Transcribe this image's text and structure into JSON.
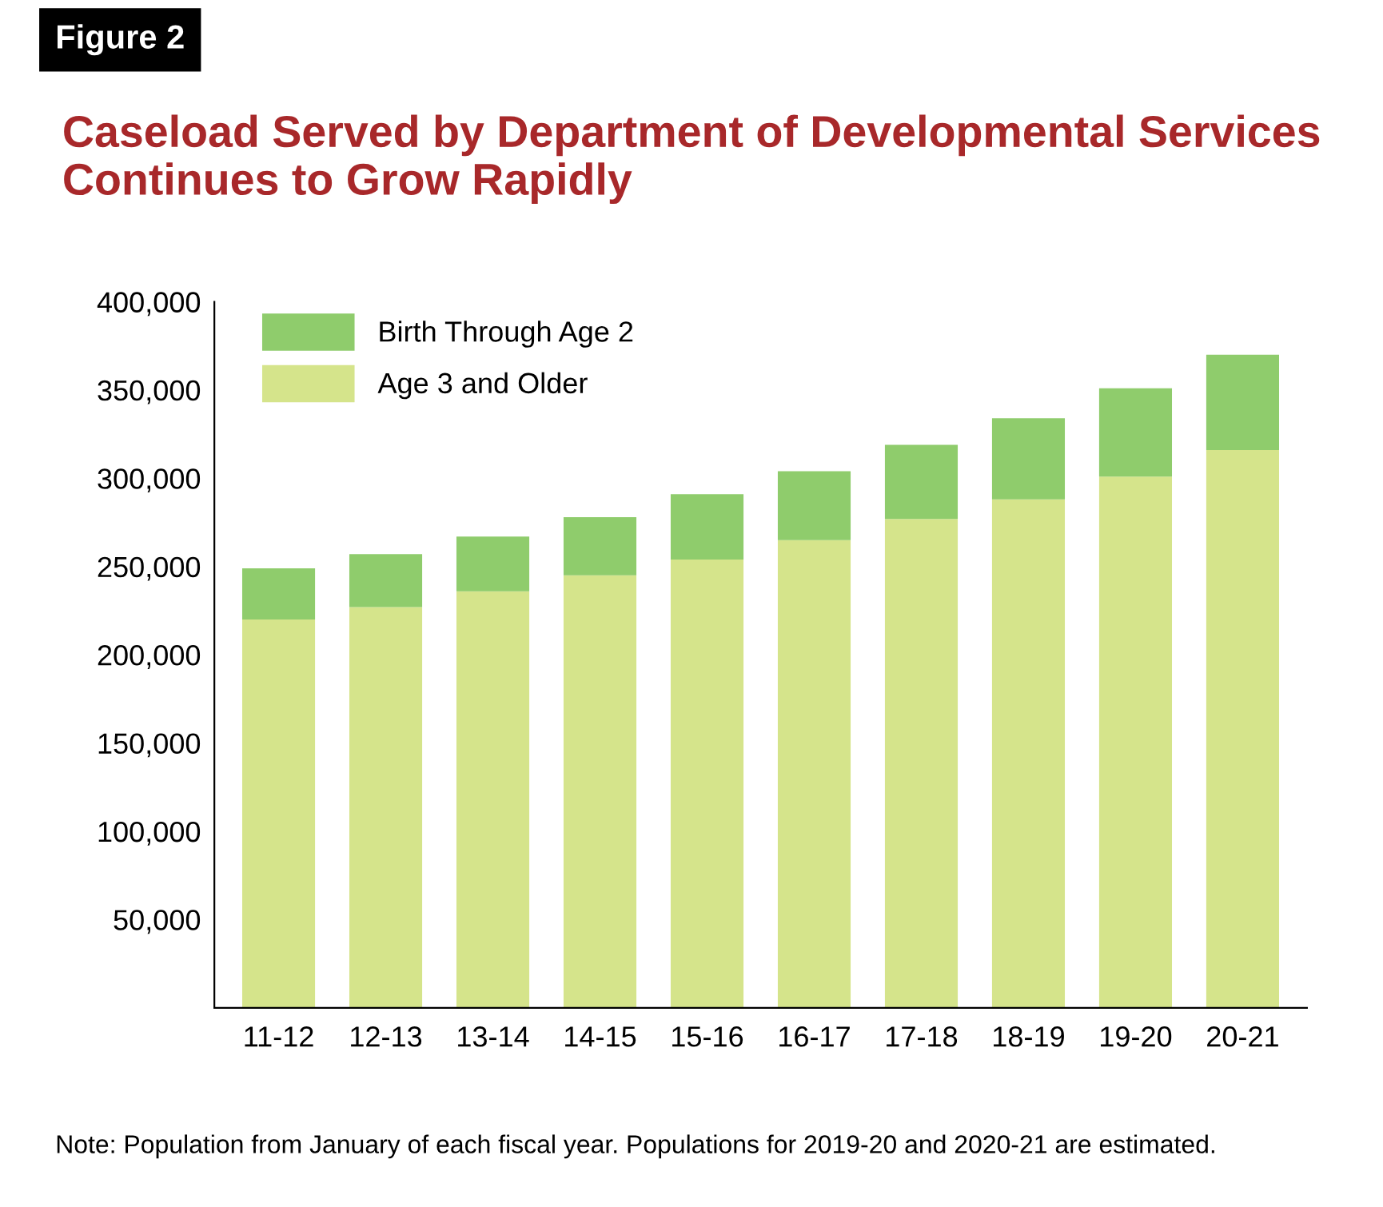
{
  "chart_data": {
    "type": "bar",
    "stacked": true,
    "title": "Caseload Served by Department of Developmental Services Continues to Grow Rapidly",
    "annotations": [
      "Figure 2",
      "Note: Population from January of each fiscal year. Populations for 2019-20 and 2020-21 are estimated."
    ],
    "categories": [
      "11-12",
      "12-13",
      "13-14",
      "14-15",
      "15-16",
      "16-17",
      "17-18",
      "18-19",
      "19-20",
      "20-21"
    ],
    "series": [
      {
        "name": "Age 3 and Older",
        "color": "#d5e48b",
        "values": [
          220000,
          227000,
          236000,
          245000,
          254000,
          265000,
          277000,
          288000,
          301000,
          316000
        ]
      },
      {
        "name": "Birth Through Age 2",
        "color": "#8fcc6c",
        "values": [
          29000,
          30000,
          31000,
          33000,
          37000,
          39000,
          42000,
          46000,
          50000,
          54000
        ]
      }
    ],
    "ylim": [
      0,
      400000
    ],
    "yticks": [
      {
        "value": 50000,
        "label": "50,000"
      },
      {
        "value": 100000,
        "label": "100,000"
      },
      {
        "value": 150000,
        "label": "150,000"
      },
      {
        "value": 200000,
        "label": "200,000"
      },
      {
        "value": 250000,
        "label": "250,000"
      },
      {
        "value": 300000,
        "label": "300,000"
      },
      {
        "value": 350000,
        "label": "350,000"
      },
      {
        "value": 400000,
        "label": "400,000"
      }
    ],
    "grid": false,
    "legend": "top left"
  }
}
